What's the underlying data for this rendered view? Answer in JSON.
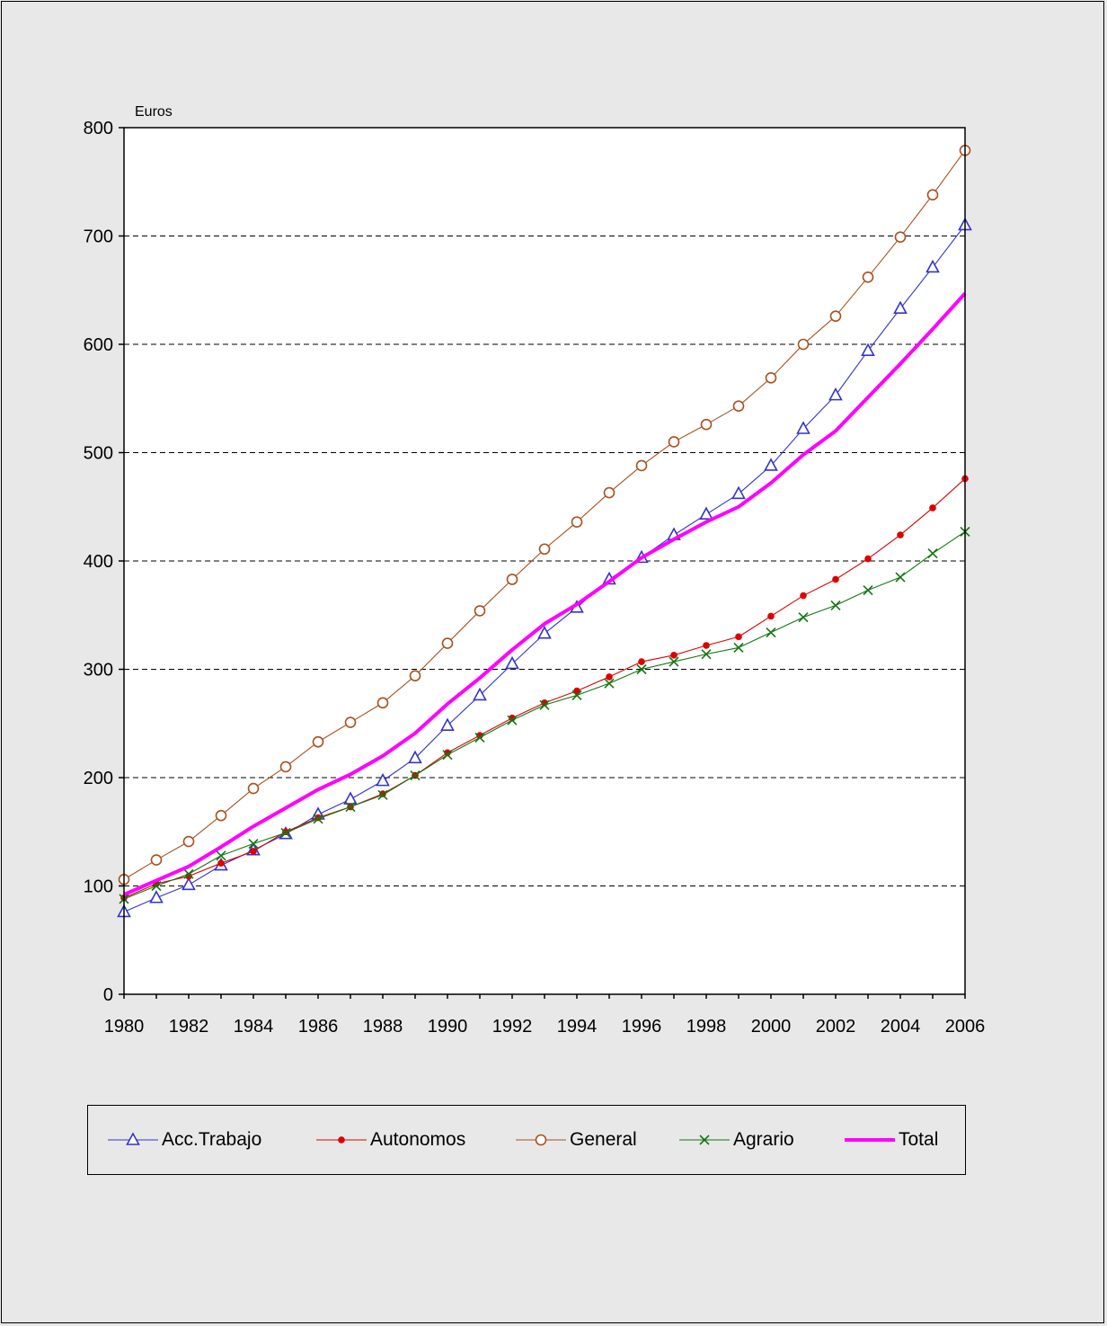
{
  "chart_data": {
    "type": "line",
    "ylabel": "Euros",
    "ylim": [
      0,
      800
    ],
    "yticks": [
      0,
      100,
      200,
      300,
      400,
      500,
      600,
      700,
      800
    ],
    "xlim": [
      1980,
      2006
    ],
    "xticks": [
      1980,
      1982,
      1984,
      1986,
      1988,
      1990,
      1992,
      1994,
      1996,
      1998,
      2000,
      2002,
      2004,
      2006
    ],
    "grid": "horizontal-dashed",
    "legend_position": "bottom",
    "x": [
      1980,
      1981,
      1982,
      1983,
      1984,
      1985,
      1986,
      1987,
      1988,
      1989,
      1990,
      1991,
      1992,
      1993,
      1994,
      1995,
      1996,
      1997,
      1998,
      1999,
      2000,
      2001,
      2002,
      2003,
      2004,
      2005,
      2006
    ],
    "series": [
      {
        "name": "Acc.Trabajo",
        "color": "#3333cc",
        "marker": "triangle-open",
        "values": [
          76,
          89,
          101,
          119,
          133,
          148,
          166,
          180,
          197,
          218,
          248,
          276,
          305,
          333,
          357,
          383,
          403,
          424,
          443,
          462,
          488,
          522,
          553,
          594,
          633,
          671,
          710
        ]
      },
      {
        "name": "Autonomos",
        "color": "#dd0000",
        "marker": "dot-filled",
        "values": [
          89,
          102,
          109,
          121,
          132,
          150,
          163,
          173,
          185,
          202,
          223,
          239,
          255,
          269,
          280,
          293,
          307,
          313,
          322,
          330,
          349,
          368,
          383,
          402,
          424,
          449,
          476
        ]
      },
      {
        "name": "General",
        "color": "#a8501e",
        "marker": "circle-open",
        "values": [
          106,
          124,
          141,
          165,
          190,
          210,
          233,
          251,
          269,
          294,
          324,
          354,
          383,
          411,
          436,
          463,
          488,
          510,
          526,
          543,
          569,
          600,
          626,
          662,
          699,
          738,
          779
        ]
      },
      {
        "name": "Agrario",
        "color": "#117711",
        "marker": "x-cross",
        "values": [
          88,
          100,
          111,
          128,
          139,
          149,
          162,
          173,
          184,
          202,
          221,
          237,
          253,
          267,
          276,
          287,
          300,
          307,
          314,
          320,
          334,
          348,
          359,
          373,
          385,
          407,
          427
        ]
      },
      {
        "name": "Total",
        "color": "#ff00ff",
        "marker": "none",
        "values": [
          92,
          105,
          118,
          136,
          155,
          172,
          189,
          203,
          220,
          241,
          268,
          292,
          318,
          342,
          360,
          381,
          403,
          420,
          436,
          450,
          472,
          498,
          520,
          551,
          582,
          614,
          647
        ]
      }
    ]
  }
}
